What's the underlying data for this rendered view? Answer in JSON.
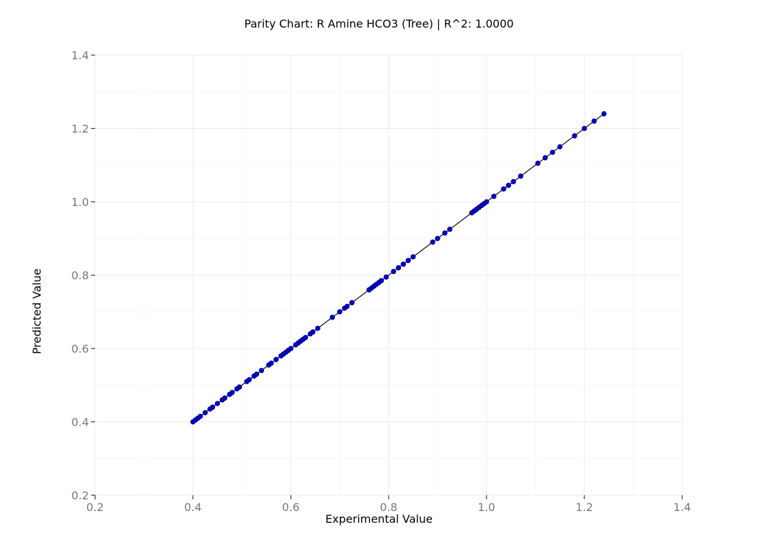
{
  "chart_data": {
    "type": "scatter",
    "title": "Parity Chart: R Amine HCO3 (Tree) | R^2: 1.0000",
    "xlabel": "Experimental Value",
    "ylabel": "Predicted Value",
    "xlim": [
      0.2,
      1.4
    ],
    "ylim": [
      0.2,
      1.4
    ],
    "xticks": [
      "0.2",
      "0.4",
      "0.6",
      "0.8",
      "1.0",
      "1.2",
      "1.4"
    ],
    "yticks": [
      "0.2",
      "0.4",
      "0.6",
      "0.8",
      "1.0",
      "1.2",
      "1.4"
    ],
    "grid": true,
    "legend": "none",
    "point_color": "#0000cd",
    "line_color": "#000000",
    "parity_line": {
      "x": [
        0.4,
        1.24
      ],
      "y": [
        0.4,
        1.24
      ]
    },
    "series": [
      {
        "x": [
          0.4,
          0.405,
          0.41,
          0.415,
          0.425,
          0.435,
          0.44,
          0.45,
          0.46,
          0.465,
          0.475,
          0.48,
          0.49,
          0.495,
          0.51,
          0.515,
          0.525,
          0.53,
          0.54,
          0.555,
          0.56,
          0.57,
          0.58,
          0.585,
          0.59,
          0.595,
          0.6,
          0.61,
          0.615,
          0.62,
          0.625,
          0.63,
          0.64,
          0.645,
          0.655,
          0.685,
          0.7,
          0.71,
          0.715,
          0.725,
          0.76,
          0.765,
          0.77,
          0.775,
          0.78,
          0.785,
          0.795,
          0.81,
          0.82,
          0.83,
          0.84,
          0.85,
          0.89,
          0.9,
          0.915,
          0.925,
          0.97,
          0.975,
          0.98,
          0.985,
          0.99,
          0.995,
          1.0,
          1.015,
          1.035,
          1.045,
          1.055,
          1.07,
          1.105,
          1.12,
          1.135,
          1.15,
          1.18,
          1.2,
          1.22,
          1.24
        ],
        "y": [
          0.4,
          0.405,
          0.41,
          0.415,
          0.425,
          0.435,
          0.44,
          0.45,
          0.46,
          0.465,
          0.475,
          0.48,
          0.49,
          0.495,
          0.51,
          0.515,
          0.525,
          0.53,
          0.54,
          0.555,
          0.56,
          0.57,
          0.58,
          0.585,
          0.59,
          0.595,
          0.6,
          0.61,
          0.615,
          0.62,
          0.625,
          0.63,
          0.64,
          0.645,
          0.655,
          0.685,
          0.7,
          0.71,
          0.715,
          0.725,
          0.76,
          0.765,
          0.77,
          0.775,
          0.78,
          0.785,
          0.795,
          0.81,
          0.82,
          0.83,
          0.84,
          0.85,
          0.89,
          0.9,
          0.915,
          0.925,
          0.97,
          0.975,
          0.98,
          0.985,
          0.99,
          0.995,
          1.0,
          1.015,
          1.035,
          1.045,
          1.055,
          1.07,
          1.105,
          1.12,
          1.135,
          1.15,
          1.18,
          1.2,
          1.22,
          1.24
        ]
      }
    ]
  }
}
